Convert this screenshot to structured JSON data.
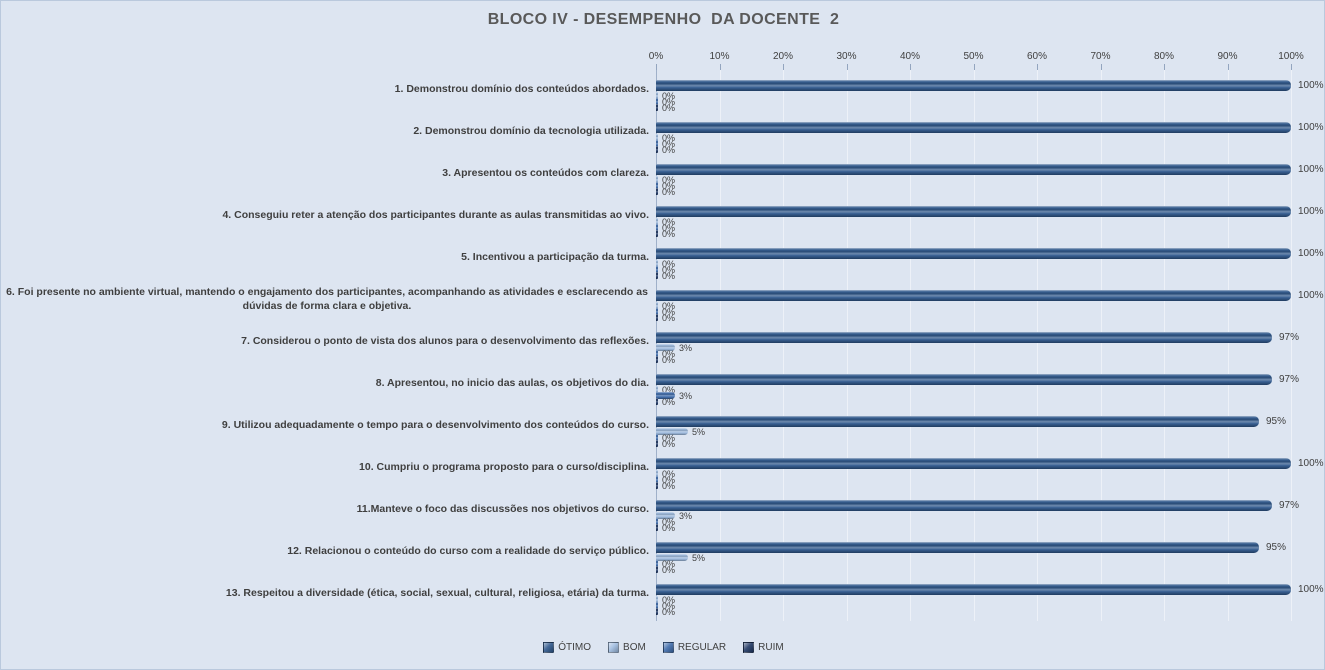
{
  "title": "BLOCO IV - DESEMPENHO  DA DOCENTE  2",
  "colors": {
    "background": "#dde5f1",
    "grid": "#edf1f8",
    "axis_line": "#9fb0c9",
    "title_text": "#595959",
    "label_text": "#3f3f3f",
    "series": {
      "otimo": "#2f588c",
      "bom": "#9dbade",
      "regular": "#3f6cab",
      "ruim": "#203864"
    }
  },
  "chart_data": {
    "type": "bar",
    "orientation": "horizontal",
    "title": "BLOCO IV - DESEMPENHO  DA DOCENTE  2",
    "categories": [
      "1. Demonstrou domínio dos conteúdos abordados.",
      "2. Demonstrou domínio da tecnologia utilizada.",
      "3. Apresentou os conteúdos com clareza.",
      "4. Conseguiu reter a atenção dos participantes durante as aulas transmitidas ao vivo.",
      "5. Incentivou a participação da turma.",
      "6. Foi presente no ambiente virtual, mantendo o engajamento dos participantes, acompanhando as atividades e esclarecendo as dúvidas de forma clara e objetiva.",
      "7. Considerou o ponto de vista dos alunos para o desenvolvimento das reflexões.",
      "8. Apresentou, no inicio das aulas, os objetivos do dia.",
      "9. Utilizou adequadamente o tempo para o desenvolvimento dos conteúdos do curso.",
      "10. Cumpriu o programa proposto para o curso/disciplina.",
      "11.Manteve o foco das discussões nos objetivos do curso.",
      "12. Relacionou o conteúdo do curso com a realidade do serviço público.",
      "13. Respeitou a diversidade (ética, social, sexual, cultural, religiosa, etária) da turma."
    ],
    "series": [
      {
        "name": "ÓTIMO",
        "key": "otimo",
        "values": [
          100,
          100,
          100,
          100,
          100,
          100,
          97,
          97,
          95,
          100,
          97,
          95,
          100
        ]
      },
      {
        "name": "BOM",
        "key": "bom",
        "values": [
          0,
          0,
          0,
          0,
          0,
          0,
          3,
          0,
          5,
          0,
          3,
          5,
          0
        ]
      },
      {
        "name": "REGULAR",
        "key": "regular",
        "values": [
          0,
          0,
          0,
          0,
          0,
          0,
          0,
          3,
          0,
          0,
          0,
          0,
          0
        ]
      },
      {
        "name": "RUIM",
        "key": "ruim",
        "values": [
          0,
          0,
          0,
          0,
          0,
          0,
          0,
          0,
          0,
          0,
          0,
          0,
          0
        ]
      }
    ],
    "x_axis": {
      "ticks": [
        "0%",
        "10%",
        "20%",
        "30%",
        "40%",
        "50%",
        "60%",
        "70%",
        "80%",
        "90%",
        "100%"
      ],
      "min": 0,
      "max": 100
    },
    "data_labels": true,
    "value_suffix": "%",
    "legend_position": "bottom",
    "grid": true
  },
  "legend": {
    "items": [
      {
        "label": "ÓTIMO",
        "key": "otimo"
      },
      {
        "label": "BOM",
        "key": "bom"
      },
      {
        "label": "REGULAR",
        "key": "regular"
      },
      {
        "label": "RUIM",
        "key": "ruim"
      }
    ]
  }
}
